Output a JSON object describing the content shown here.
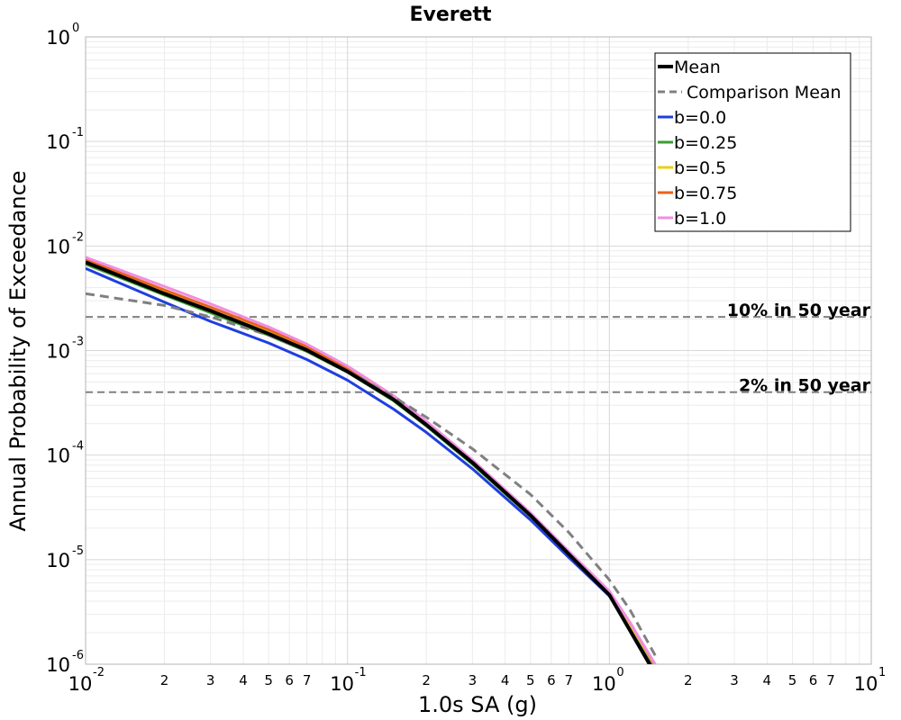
{
  "chart_data": {
    "type": "line",
    "title": "Everett",
    "xlabel": "1.0s SA (g)",
    "ylabel": "Annual Probability of Exceedance",
    "x_scale": "log",
    "y_scale": "log",
    "xlim": [
      0.01,
      10
    ],
    "ylim": [
      1e-06,
      1
    ],
    "grid": true,
    "legend_position": "top-right",
    "x_major_ticks": [
      {
        "base": "10",
        "exp": "-2",
        "value": 0.01
      },
      {
        "base": "10",
        "exp": "-1",
        "value": 0.1
      },
      {
        "base": "10",
        "exp": "0",
        "value": 1
      },
      {
        "base": "10",
        "exp": "1",
        "value": 10
      }
    ],
    "y_major_ticks": [
      {
        "base": "10",
        "exp": "0",
        "value": 1
      },
      {
        "base": "10",
        "exp": "-1",
        "value": 0.1
      },
      {
        "base": "10",
        "exp": "-2",
        "value": 0.01
      },
      {
        "base": "10",
        "exp": "-3",
        "value": 0.001
      },
      {
        "base": "10",
        "exp": "-4",
        "value": 0.0001
      },
      {
        "base": "10",
        "exp": "-5",
        "value": 1e-05
      },
      {
        "base": "10",
        "exp": "-6",
        "value": 1e-06
      }
    ],
    "x_minor_tick_labels": [
      "2",
      "3",
      "4",
      "5",
      "6",
      "7"
    ],
    "reference_lines": [
      {
        "label": "10% in 50 year",
        "y": 0.0021
      },
      {
        "label": "2% in 50 year",
        "y": 0.0004
      }
    ],
    "series": [
      {
        "name": "b=0.0",
        "color": "#1f3fe0",
        "style": "solid",
        "x": [
          0.01,
          0.02,
          0.03,
          0.05,
          0.07,
          0.1,
          0.15,
          0.2,
          0.3,
          0.5,
          0.7,
          1.0,
          1.2,
          1.5
        ],
        "y": [
          0.0061,
          0.0029,
          0.0019,
          0.00118,
          0.00082,
          0.00052,
          0.000275,
          0.000165,
          7.4e-05,
          2.4e-05,
          1.05e-05,
          4.5e-06,
          2.3e-06,
          9e-07
        ]
      },
      {
        "name": "b=0.25",
        "color": "#3a9e2f",
        "style": "solid",
        "x": [
          0.01,
          0.02,
          0.03,
          0.05,
          0.07,
          0.1,
          0.15,
          0.2,
          0.3,
          0.5,
          0.7,
          1.0,
          1.2,
          1.5
        ],
        "y": [
          0.0067,
          0.0034,
          0.0023,
          0.0014,
          0.00098,
          0.00062,
          0.00033,
          0.00019,
          8.2e-05,
          2.6e-05,
          1.12e-05,
          4.7e-06,
          2.4e-06,
          9.3e-07
        ]
      },
      {
        "name": "b=0.5",
        "color": "#e8d215",
        "style": "solid",
        "x": [
          0.01,
          0.02,
          0.03,
          0.05,
          0.07,
          0.1,
          0.15,
          0.2,
          0.3,
          0.5,
          0.7,
          1.0,
          1.2,
          1.5
        ],
        "y": [
          0.0071,
          0.0036,
          0.0024,
          0.0015,
          0.00104,
          0.00065,
          0.00034,
          0.000198,
          8.5e-05,
          2.68e-05,
          1.15e-05,
          4.8e-06,
          2.4e-06,
          9.5e-07
        ]
      },
      {
        "name": "b=0.75",
        "color": "#e8631a",
        "style": "solid",
        "x": [
          0.01,
          0.02,
          0.03,
          0.05,
          0.07,
          0.1,
          0.15,
          0.2,
          0.3,
          0.5,
          0.7,
          1.0,
          1.2,
          1.5
        ],
        "y": [
          0.0074,
          0.0038,
          0.0026,
          0.00158,
          0.00109,
          0.00068,
          0.00036,
          0.000205,
          8.8e-05,
          2.75e-05,
          1.18e-05,
          4.9e-06,
          2.5e-06,
          9.7e-07
        ]
      },
      {
        "name": "b=1.0",
        "color": "#f08ee0",
        "style": "solid",
        "x": [
          0.01,
          0.02,
          0.03,
          0.05,
          0.07,
          0.1,
          0.15,
          0.2,
          0.3,
          0.5,
          0.7,
          1.0,
          1.2,
          1.5
        ],
        "y": [
          0.0078,
          0.0041,
          0.0028,
          0.00168,
          0.00115,
          0.00071,
          0.00037,
          0.00021,
          9e-05,
          2.8e-05,
          1.2e-05,
          5e-06,
          2.5e-06,
          9.9e-07
        ]
      },
      {
        "name": "Comparison Mean",
        "color": "#808080",
        "style": "dashed",
        "x": [
          0.01,
          0.02,
          0.03,
          0.05,
          0.07,
          0.1,
          0.15,
          0.2,
          0.3,
          0.5,
          0.7,
          1.0,
          1.2,
          1.5
        ],
        "y": [
          0.0035,
          0.0027,
          0.0021,
          0.0014,
          0.00099,
          0.00064,
          0.00036,
          0.00023,
          0.000115,
          4.2e-05,
          1.82e-05,
          6.4e-06,
          3.3e-06,
          1.2e-06
        ]
      },
      {
        "name": "Mean",
        "color": "#000000",
        "style": "solid",
        "x": [
          0.01,
          0.02,
          0.03,
          0.05,
          0.07,
          0.1,
          0.15,
          0.2,
          0.3,
          0.5,
          0.7,
          1.0,
          1.2,
          1.5
        ],
        "y": [
          0.007,
          0.0035,
          0.0024,
          0.00145,
          0.00101,
          0.00063,
          0.00034,
          0.000195,
          8.5e-05,
          2.65e-05,
          1.13e-05,
          4.6e-06,
          2.1e-06,
          8e-07
        ]
      }
    ],
    "legend_order": [
      "Mean",
      "Comparison Mean",
      "b=0.0",
      "b=0.25",
      "b=0.5",
      "b=0.75",
      "b=1.0"
    ]
  }
}
